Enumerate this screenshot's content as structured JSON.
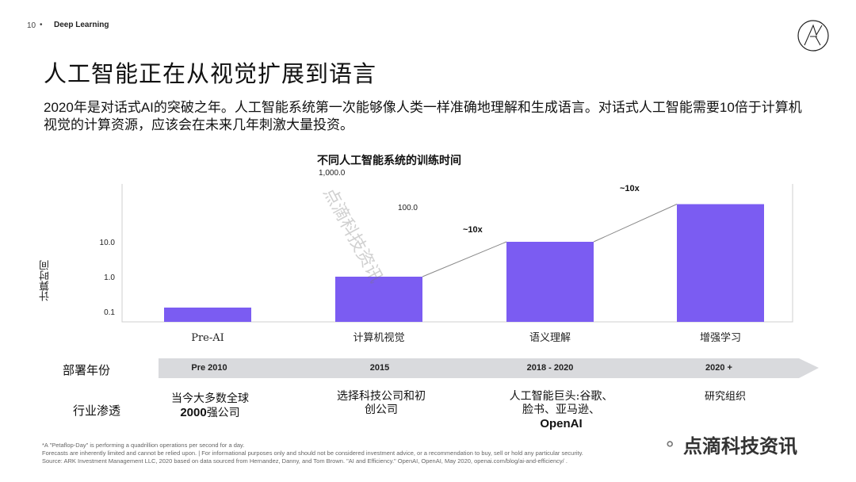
{
  "header": {
    "page_number": "10",
    "separator": "•",
    "section": "Deep Learning"
  },
  "title": "人工智能正在从视觉扩展到语言",
  "subtitle": "2020年是对话式AI的突破之年。人工智能系统第一次能够像人类一样准确地理解和生成语言。对话式人工智能需要10倍于计算机视觉的计算资源，应该会在未来几年刺激大量投资。",
  "chart_data": {
    "type": "bar",
    "title": "不同人工智能系统的训练时间",
    "ylabel": "计算时间",
    "y_scale": "log",
    "y_ticks": [
      "0.1",
      "1.0",
      "10.0",
      "100.0",
      "1,000.0"
    ],
    "ylim": [
      0.1,
      1000
    ],
    "categories": [
      "Pre-AI",
      "计算机视觉",
      "语义理解",
      "增强学习"
    ],
    "values": [
      0.13,
      1,
      10,
      120
    ],
    "bar_color": "#7b5cf2",
    "annotations": [
      "~10x",
      "~10x"
    ]
  },
  "rows": {
    "deploy_label": "部署年份",
    "penetration_label": "行业渗透",
    "years": [
      "Pre 2010",
      "2015",
      "2018 - 2020",
      "2020 +"
    ],
    "penetration": [
      {
        "line1": "当今大多数全球",
        "line2_bold": "2000",
        "line2": "强公司"
      },
      {
        "line1": "选择科技公司和初",
        "line2": "创公司"
      },
      {
        "line1": "人工智能巨头:谷歌、",
        "line2": "脸书、亚马逊、",
        "line3_bold": "OpenAI"
      },
      {
        "line1": "研究组织"
      }
    ],
    "arrow_color": "#d9dadd"
  },
  "footnotes": [
    "*A \"Petaflop-Day\" is performing a quadrillion operations per second for a day.",
    "Forecasts are inherently limited and cannot be relied upon. | For informational purposes only and should not be considered investment advice, or a recommendation to buy, sell or hold any particular security.",
    "Source: ARK Investment Management LLC, 2020 based on data sourced from Hernandez, Danny, and Tom Brown. \"AI and Efficiency.\" OpenAI, OpenAI, May 2020, openai.com/blog/ai-and-efficiency/ ."
  ],
  "watermark": {
    "text": "点滴科技资讯",
    "diagonal": "点滴科技资讯"
  }
}
